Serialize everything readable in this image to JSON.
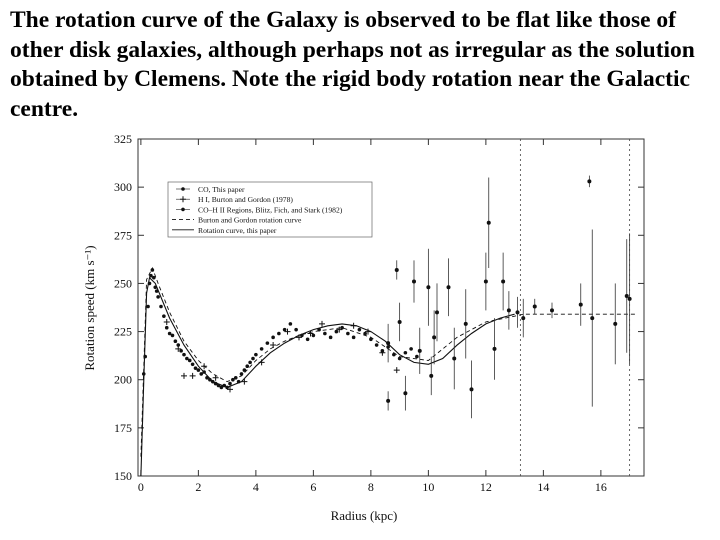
{
  "caption": "The rotation curve of the Galaxy is observed to be flat like those of other disk galaxies, although perhaps not as irregular as the solution obtained by Clemens. Note the rigid body rotation near the Galactic centre.",
  "chart_data": {
    "type": "scatter",
    "title": "",
    "xlabel": "Radius (kpc)",
    "ylabel": "Rotation speed (km s⁻¹)",
    "xlim": [
      -0.1,
      17.5
    ],
    "ylim": [
      150,
      325
    ],
    "x_ticks": [
      0,
      2,
      4,
      6,
      8,
      10,
      12,
      14,
      16
    ],
    "y_ticks": [
      150,
      175,
      200,
      225,
      250,
      275,
      300,
      325
    ],
    "grid": false,
    "legend_position": "top-left",
    "series": [
      {
        "name": "CO, This paper",
        "marker": "dot",
        "points": [
          [
            0.1,
            203
          ],
          [
            0.15,
            212
          ],
          [
            0.25,
            238
          ],
          [
            0.3,
            250
          ],
          [
            0.35,
            254
          ],
          [
            0.4,
            257
          ],
          [
            0.45,
            253
          ],
          [
            0.5,
            248
          ],
          [
            0.55,
            246
          ],
          [
            0.6,
            243
          ],
          [
            0.7,
            238
          ],
          [
            0.8,
            233
          ],
          [
            0.9,
            227
          ],
          [
            1.0,
            224
          ],
          [
            1.1,
            223
          ],
          [
            1.2,
            220
          ],
          [
            1.3,
            218
          ],
          [
            1.4,
            215
          ],
          [
            1.5,
            213
          ],
          [
            1.6,
            211
          ],
          [
            1.7,
            210
          ],
          [
            1.8,
            208
          ],
          [
            1.9,
            206
          ],
          [
            2.0,
            205
          ],
          [
            2.1,
            203
          ],
          [
            2.2,
            204
          ],
          [
            2.3,
            201
          ],
          [
            2.4,
            200
          ],
          [
            2.5,
            199
          ],
          [
            2.6,
            198
          ],
          [
            2.7,
            197
          ],
          [
            2.8,
            196
          ],
          [
            2.9,
            197
          ],
          [
            3.0,
            196
          ],
          [
            3.1,
            198
          ],
          [
            3.2,
            200
          ],
          [
            3.3,
            201
          ],
          [
            3.4,
            199
          ],
          [
            3.5,
            203
          ],
          [
            3.6,
            205
          ],
          [
            3.7,
            207
          ],
          [
            3.8,
            209
          ],
          [
            3.9,
            211
          ],
          [
            4.0,
            213
          ],
          [
            4.2,
            216
          ],
          [
            4.4,
            219
          ],
          [
            4.6,
            222
          ],
          [
            4.8,
            224
          ],
          [
            5.0,
            226
          ],
          [
            5.2,
            229
          ],
          [
            5.4,
            226
          ],
          [
            5.6,
            223
          ],
          [
            5.8,
            221
          ],
          [
            6.0,
            223
          ],
          [
            6.2,
            226
          ],
          [
            6.4,
            224
          ],
          [
            6.6,
            222
          ],
          [
            6.8,
            225
          ],
          [
            7.0,
            227
          ],
          [
            7.2,
            224
          ],
          [
            7.4,
            222
          ],
          [
            7.6,
            226
          ],
          [
            7.8,
            224
          ],
          [
            8.0,
            221
          ],
          [
            8.2,
            218
          ],
          [
            8.4,
            215
          ],
          [
            8.6,
            217
          ],
          [
            8.8,
            213
          ],
          [
            9.0,
            211
          ],
          [
            9.2,
            214
          ],
          [
            9.4,
            216
          ],
          [
            9.6,
            212
          ]
        ]
      },
      {
        "name": "H I, Burton and Gordon (1978)",
        "marker": "plus",
        "points": [
          [
            0.9,
            230
          ],
          [
            1.3,
            216
          ],
          [
            1.5,
            202
          ],
          [
            1.8,
            202
          ],
          [
            2.2,
            207
          ],
          [
            2.6,
            201
          ],
          [
            3.1,
            195
          ],
          [
            3.6,
            199
          ],
          [
            4.2,
            209
          ],
          [
            4.6,
            218
          ],
          [
            5.1,
            225
          ],
          [
            5.5,
            222
          ],
          [
            5.9,
            224
          ],
          [
            6.3,
            229
          ],
          [
            6.9,
            226
          ],
          [
            7.4,
            228
          ],
          [
            7.9,
            225
          ],
          [
            8.4,
            214
          ],
          [
            8.9,
            205
          ]
        ]
      },
      {
        "name": "CO–H II Regions, Blitz, Fich, and Stark (1982)",
        "marker": "dot_errorbar",
        "points": [
          [
            8.6,
            209,
            229
          ],
          [
            8.6,
            184,
            194
          ],
          [
            8.9,
            252,
            262
          ],
          [
            9.0,
            220,
            240
          ],
          [
            9.2,
            184,
            202
          ],
          [
            9.5,
            240,
            262
          ],
          [
            9.7,
            203,
            227
          ],
          [
            10.0,
            228,
            268
          ],
          [
            10.1,
            192,
            212
          ],
          [
            10.3,
            220,
            250
          ],
          [
            10.2,
            208,
            236
          ],
          [
            10.7,
            233,
            263
          ],
          [
            10.9,
            195,
            227
          ],
          [
            11.3,
            211,
            247
          ],
          [
            11.5,
            180,
            210
          ],
          [
            12.0,
            236,
            266
          ],
          [
            12.1,
            258,
            305
          ],
          [
            12.3,
            200,
            232
          ],
          [
            12.6,
            236,
            266
          ],
          [
            12.8,
            226,
            246
          ],
          [
            13.1,
            227,
            243
          ],
          [
            13.3,
            222,
            242
          ],
          [
            13.7,
            234,
            242
          ],
          [
            14.3,
            232,
            240
          ],
          [
            15.3,
            228,
            250
          ],
          [
            15.6,
            300,
            306
          ],
          [
            15.7,
            186,
            278
          ],
          [
            16.5,
            208,
            250
          ],
          [
            16.9,
            214,
            273
          ],
          [
            17.0,
            208,
            276
          ]
        ]
      },
      {
        "name": "Burton and Gordon rotation curve",
        "line": "dashed",
        "points": [
          [
            0.0,
            160
          ],
          [
            0.2,
            252
          ],
          [
            0.4,
            258
          ],
          [
            0.6,
            250
          ],
          [
            1.0,
            235
          ],
          [
            1.5,
            220
          ],
          [
            2.0,
            210
          ],
          [
            2.5,
            203
          ],
          [
            3.0,
            199
          ],
          [
            3.5,
            202
          ],
          [
            4.0,
            210
          ],
          [
            4.5,
            216
          ],
          [
            5.0,
            220
          ],
          [
            5.5,
            223
          ],
          [
            6.0,
            225
          ],
          [
            7.0,
            227
          ],
          [
            8.0,
            222
          ],
          [
            9.0,
            212
          ],
          [
            10.0,
            210
          ],
          [
            11.0,
            222
          ],
          [
            12.0,
            230
          ],
          [
            13.0,
            233
          ],
          [
            13.3,
            234
          ],
          [
            17.2,
            234
          ]
        ]
      },
      {
        "name": "Rotation curve, this paper",
        "line": "solid",
        "points": [
          [
            0.0,
            150
          ],
          [
            0.1,
            200
          ],
          [
            0.2,
            245
          ],
          [
            0.3,
            253
          ],
          [
            0.5,
            250
          ],
          [
            1.0,
            232
          ],
          [
            1.5,
            218
          ],
          [
            2.0,
            207
          ],
          [
            2.5,
            199
          ],
          [
            3.0,
            196
          ],
          [
            3.5,
            199
          ],
          [
            4.0,
            207
          ],
          [
            4.5,
            214
          ],
          [
            5.0,
            219
          ],
          [
            5.5,
            223
          ],
          [
            6.0,
            226
          ],
          [
            6.5,
            228
          ],
          [
            7.0,
            229
          ],
          [
            7.5,
            228
          ],
          [
            8.0,
            225
          ],
          [
            8.5,
            220
          ],
          [
            9.0,
            213
          ],
          [
            9.5,
            209
          ],
          [
            10.0,
            208
          ],
          [
            10.5,
            211
          ],
          [
            11.0,
            218
          ],
          [
            11.5,
            224
          ],
          [
            12.0,
            229
          ],
          [
            12.5,
            232
          ],
          [
            13.0,
            234
          ]
        ]
      }
    ],
    "vertical_reference_lines_x": [
      13.2,
      17.0
    ]
  }
}
